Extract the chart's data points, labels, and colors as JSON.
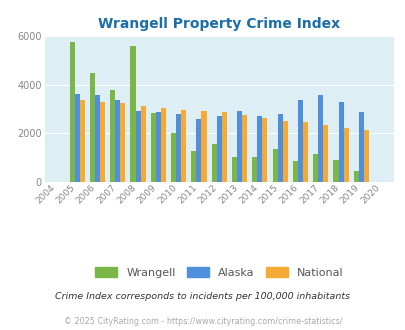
{
  "title": "Wrangell Property Crime Index",
  "title_color": "#1a6faa",
  "years": [
    2004,
    2005,
    2006,
    2007,
    2008,
    2009,
    2010,
    2011,
    2012,
    2013,
    2014,
    2015,
    2016,
    2017,
    2018,
    2019,
    2020
  ],
  "wrangell": [
    0,
    5750,
    4500,
    3800,
    5600,
    2850,
    2020,
    1280,
    1560,
    1000,
    1000,
    1360,
    850,
    1130,
    880,
    420,
    0
  ],
  "alaska": [
    0,
    3620,
    3570,
    3380,
    2920,
    2880,
    2800,
    2580,
    2710,
    2900,
    2690,
    2780,
    3350,
    3570,
    3270,
    2880,
    0
  ],
  "national": [
    0,
    3380,
    3300,
    3250,
    3140,
    3040,
    2970,
    2900,
    2870,
    2740,
    2620,
    2490,
    2460,
    2340,
    2200,
    2110,
    0
  ],
  "wrangell_color": "#7ab648",
  "alaska_color": "#4f8fde",
  "national_color": "#f5aa35",
  "plot_bg": "#ddeef5",
  "ylim": [
    0,
    6000
  ],
  "yticks": [
    0,
    2000,
    4000,
    6000
  ],
  "grid_color": "#ffffff",
  "subtitle": "Crime Index corresponds to incidents per 100,000 inhabitants",
  "copyright": "© 2025 CityRating.com - https://www.cityrating.com/crime-statistics/",
  "legend_labels": [
    "Wrangell",
    "Alaska",
    "National"
  ],
  "bar_width": 0.25
}
